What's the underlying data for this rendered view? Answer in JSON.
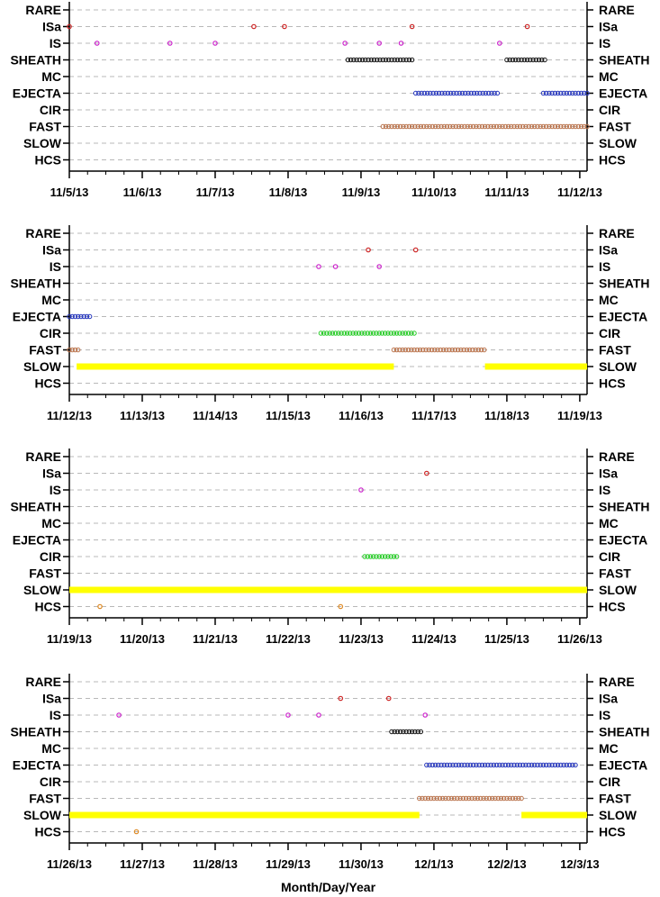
{
  "chart_data": [
    {
      "type": "scatter",
      "categories": [
        "RARE",
        "ISa",
        "IS",
        "SHEATH",
        "MC",
        "EJECTA",
        "CIR",
        "FAST",
        "SLOW",
        "HCS"
      ],
      "x_ticks": [
        "11/5/13",
        "11/6/13",
        "11/7/13",
        "11/8/13",
        "11/9/13",
        "11/10/13",
        "11/11/13",
        "11/12/13"
      ],
      "x_unit": "days",
      "xlim": [
        0,
        7.1
      ],
      "grid": "dashed horizontal",
      "series": [
        {
          "category": "ISa",
          "color": "#cc2222",
          "points": [
            0.0,
            2.53,
            2.95,
            4.7,
            6.28
          ]
        },
        {
          "category": "IS",
          "color": "#cc22cc",
          "points": [
            0.38,
            1.38,
            2.0,
            3.78,
            4.25,
            4.55,
            5.9
          ]
        },
        {
          "category": "SHEATH",
          "color": "#111111",
          "segments": [
            [
              3.82,
              4.7
            ],
            [
              6.0,
              6.55
            ]
          ]
        },
        {
          "category": "EJECTA",
          "color": "#2233bb",
          "segments": [
            [
              4.75,
              5.9
            ],
            [
              6.5,
              7.1
            ]
          ]
        },
        {
          "category": "FAST",
          "color": "#b87048",
          "segments": [
            [
              4.3,
              7.1
            ]
          ]
        }
      ]
    },
    {
      "type": "scatter",
      "categories": [
        "RARE",
        "ISa",
        "IS",
        "SHEATH",
        "MC",
        "EJECTA",
        "CIR",
        "FAST",
        "SLOW",
        "HCS"
      ],
      "x_ticks": [
        "11/12/13",
        "11/13/13",
        "11/14/13",
        "11/15/13",
        "11/16/13",
        "11/17/13",
        "11/18/13",
        "11/19/13"
      ],
      "x_unit": "days",
      "xlim": [
        0,
        7.1
      ],
      "grid": "dashed horizontal",
      "series": [
        {
          "category": "ISa",
          "color": "#cc2222",
          "points": [
            4.1,
            4.75
          ]
        },
        {
          "category": "IS",
          "color": "#cc22cc",
          "points": [
            3.42,
            3.65,
            4.25
          ]
        },
        {
          "category": "EJECTA",
          "color": "#2233bb",
          "segments": [
            [
              0.0,
              0.3
            ]
          ]
        },
        {
          "category": "CIR",
          "color": "#22cc22",
          "segments": [
            [
              3.45,
              4.75
            ]
          ]
        },
        {
          "category": "FAST",
          "color": "#b87048",
          "segments": [
            [
              0.0,
              0.12
            ],
            [
              4.45,
              5.7
            ]
          ]
        },
        {
          "category": "SLOW",
          "color": "#ffff00",
          "segments": [
            [
              0.1,
              4.45
            ],
            [
              5.7,
              7.1
            ]
          ]
        }
      ]
    },
    {
      "type": "scatter",
      "categories": [
        "RARE",
        "ISa",
        "IS",
        "SHEATH",
        "MC",
        "EJECTA",
        "CIR",
        "FAST",
        "SLOW",
        "HCS"
      ],
      "x_ticks": [
        "11/19/13",
        "11/20/13",
        "11/21/13",
        "11/22/13",
        "11/23/13",
        "11/24/13",
        "11/25/13",
        "11/26/13"
      ],
      "x_unit": "days",
      "xlim": [
        0,
        7.1
      ],
      "grid": "dashed horizontal",
      "series": [
        {
          "category": "ISa",
          "color": "#cc2222",
          "points": [
            4.9
          ]
        },
        {
          "category": "IS",
          "color": "#cc22cc",
          "points": [
            4.0
          ]
        },
        {
          "category": "CIR",
          "color": "#22cc22",
          "segments": [
            [
              4.05,
              4.5
            ]
          ]
        },
        {
          "category": "SLOW",
          "color": "#ffff00",
          "segments": [
            [
              0.0,
              7.1
            ]
          ]
        },
        {
          "category": "HCS",
          "color": "#dd8822",
          "points": [
            0.42,
            3.72
          ]
        }
      ]
    },
    {
      "type": "scatter",
      "categories": [
        "RARE",
        "ISa",
        "IS",
        "SHEATH",
        "MC",
        "EJECTA",
        "CIR",
        "FAST",
        "SLOW",
        "HCS"
      ],
      "x_ticks": [
        "11/26/13",
        "11/27/13",
        "11/28/13",
        "11/29/13",
        "11/30/13",
        "12/1/13",
        "12/2/13",
        "12/3/13"
      ],
      "x_unit": "days",
      "xlim": [
        0,
        7.1
      ],
      "xlabel": "Month/Day/Year",
      "grid": "dashed horizontal",
      "series": [
        {
          "category": "ISa",
          "color": "#cc2222",
          "points": [
            3.72,
            4.38
          ]
        },
        {
          "category": "IS",
          "color": "#cc22cc",
          "points": [
            0.68,
            3.0,
            3.42,
            4.88
          ]
        },
        {
          "category": "SHEATH",
          "color": "#111111",
          "segments": [
            [
              4.42,
              4.85
            ]
          ]
        },
        {
          "category": "EJECTA",
          "color": "#2233bb",
          "segments": [
            [
              4.9,
              6.95
            ]
          ]
        },
        {
          "category": "FAST",
          "color": "#b87048",
          "segments": [
            [
              4.8,
              6.2
            ]
          ]
        },
        {
          "category": "SLOW",
          "color": "#ffff00",
          "segments": [
            [
              0.0,
              4.8
            ],
            [
              6.2,
              7.1
            ]
          ]
        },
        {
          "category": "HCS",
          "color": "#dd8822",
          "points": [
            0.92
          ]
        }
      ]
    }
  ]
}
